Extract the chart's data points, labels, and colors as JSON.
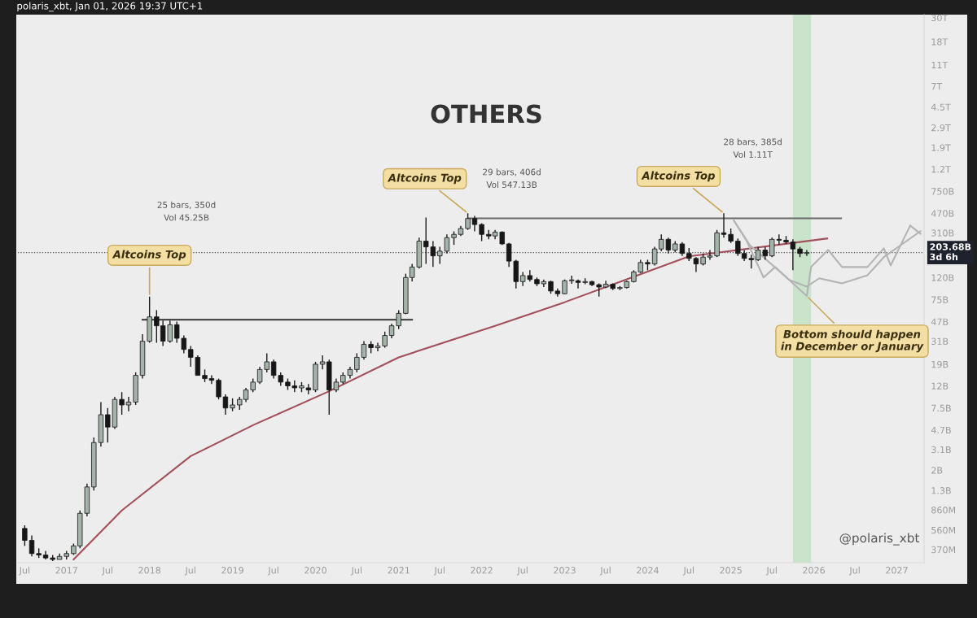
{
  "chart_data": {
    "type": "candlestick",
    "title": "OTHERS",
    "x": [
      "2016-07",
      "2016-08",
      "2016-09",
      "2016-10",
      "2016-11",
      "2016-12",
      "2017-01",
      "2017-02",
      "2017-03",
      "2017-04",
      "2017-05",
      "2017-06",
      "2017-07",
      "2017-08",
      "2017-09",
      "2017-10",
      "2017-11",
      "2017-12",
      "2018-01",
      "2018-02",
      "2018-03",
      "2018-04",
      "2018-05",
      "2018-06",
      "2018-07",
      "2018-08",
      "2018-09",
      "2018-10",
      "2018-11",
      "2018-12",
      "2019-01",
      "2019-02",
      "2019-03",
      "2019-04",
      "2019-05",
      "2019-06",
      "2019-07",
      "2019-08",
      "2019-09",
      "2019-10",
      "2019-11",
      "2019-12",
      "2020-01",
      "2020-02",
      "2020-03",
      "2020-04",
      "2020-05",
      "2020-06",
      "2020-07",
      "2020-08",
      "2020-09",
      "2020-10",
      "2020-11",
      "2020-12",
      "2021-01",
      "2021-02",
      "2021-03",
      "2021-04",
      "2021-05",
      "2021-06",
      "2021-07",
      "2021-08",
      "2021-09",
      "2021-10",
      "2021-11",
      "2021-12",
      "2022-01",
      "2022-02",
      "2022-03",
      "2022-04",
      "2022-05",
      "2022-06",
      "2022-07",
      "2022-08",
      "2022-09",
      "2022-10",
      "2022-11",
      "2022-12",
      "2023-01",
      "2023-02",
      "2023-03",
      "2023-04",
      "2023-05",
      "2023-06",
      "2023-07",
      "2023-08",
      "2023-09",
      "2023-10",
      "2023-11",
      "2023-12",
      "2024-01",
      "2024-02",
      "2024-03",
      "2024-04",
      "2024-05",
      "2024-06",
      "2024-07",
      "2024-08",
      "2024-09",
      "2024-10",
      "2024-11",
      "2024-12",
      "2025-01",
      "2025-02",
      "2025-03",
      "2025-04",
      "2025-05",
      "2025-06",
      "2025-07",
      "2025-08",
      "2025-09",
      "2025-10",
      "2025-11",
      "2025-12"
    ],
    "ohlc": [
      [
        580000000.0,
        620000000.0,
        400000000.0,
        450000000.0
      ],
      [
        450000000.0,
        500000000.0,
        320000000.0,
        340000000.0
      ],
      [
        340000000.0,
        380000000.0,
        310000000.0,
        330000000.0
      ],
      [
        330000000.0,
        360000000.0,
        300000000.0,
        310000000.0
      ],
      [
        310000000.0,
        330000000.0,
        290000000.0,
        300000000.0
      ],
      [
        300000000.0,
        340000000.0,
        300000000.0,
        320000000.0
      ],
      [
        320000000.0,
        360000000.0,
        300000000.0,
        340000000.0
      ],
      [
        340000000.0,
        420000000.0,
        330000000.0,
        400000000.0
      ],
      [
        400000000.0,
        850000000.0,
        380000000.0,
        800000000.0
      ],
      [
        800000000.0,
        1500000000.0,
        750000000.0,
        1400000000.0
      ],
      [
        1400000000.0,
        4000000000.0,
        1300000000.0,
        3600000000.0
      ],
      [
        3600000000.0,
        8500000000.0,
        3300000000.0,
        6500000000.0
      ],
      [
        6500000000.0,
        7500000000.0,
        3600000000.0,
        5000000000.0
      ],
      [
        5000000000.0,
        9500000000.0,
        4800000000.0,
        9000000000.0
      ],
      [
        9000000000.0,
        10500000000.0,
        6500000000.0,
        8000000000.0
      ],
      [
        8000000000.0,
        9500000000.0,
        7000000000.0,
        8500000000.0
      ],
      [
        8500000000.0,
        16000000000.0,
        8000000000.0,
        15000000000.0
      ],
      [
        15000000000.0,
        36000000000.0,
        14000000000.0,
        31000000000.0
      ],
      [
        31000000000.0,
        80000000000.0,
        30000000000.0,
        52000000000.0
      ],
      [
        52000000000.0,
        60000000000.0,
        30000000000.0,
        43000000000.0
      ],
      [
        43000000000.0,
        48000000000.0,
        28000000000.0,
        31000000000.0
      ],
      [
        31000000000.0,
        48000000000.0,
        30000000000.0,
        44000000000.0
      ],
      [
        44000000000.0,
        47000000000.0,
        30000000000.0,
        33000000000.0
      ],
      [
        33000000000.0,
        35000000000.0,
        24000000000.0,
        26000000000.0
      ],
      [
        26000000000.0,
        28000000000.0,
        18000000000.0,
        22000000000.0
      ],
      [
        22000000000.0,
        23000000000.0,
        15000000000.0,
        15000000000.0
      ],
      [
        15000000000.0,
        17000000000.0,
        13000000000.0,
        14000000000.0
      ],
      [
        14000000000.0,
        15000000000.0,
        12500000000.0,
        13500000000.0
      ],
      [
        13500000000.0,
        14000000000.0,
        9000000000.0,
        9500000000.0
      ],
      [
        9500000000.0,
        10000000000.0,
        6500000000.0,
        7500000000.0
      ],
      [
        7500000000.0,
        9200000000.0,
        7000000000.0,
        8000000000.0
      ],
      [
        8000000000.0,
        9500000000.0,
        7200000000.0,
        9000000000.0
      ],
      [
        9000000000.0,
        11500000000.0,
        8500000000.0,
        11000000000.0
      ],
      [
        11000000000.0,
        14000000000.0,
        10500000000.0,
        13000000000.0
      ],
      [
        13000000000.0,
        18000000000.0,
        12500000000.0,
        17000000000.0
      ],
      [
        17000000000.0,
        24000000000.0,
        16000000000.0,
        20000000000.0
      ],
      [
        20000000000.0,
        21000000000.0,
        14000000000.0,
        15000000000.0
      ],
      [
        15000000000.0,
        16000000000.0,
        12000000000.0,
        13000000000.0
      ],
      [
        13000000000.0,
        14000000000.0,
        11000000000.0,
        12000000000.0
      ],
      [
        12000000000.0,
        13500000000.0,
        10500000000.0,
        11500000000.0
      ],
      [
        11500000000.0,
        13000000000.0,
        10500000000.0,
        12000000000.0
      ],
      [
        11500000000.0,
        12500000000.0,
        10000000000.0,
        11000000000.0
      ],
      [
        11000000000.0,
        20000000000.0,
        10500000000.0,
        19000000000.0
      ],
      [
        19000000000.0,
        23000000000.0,
        17000000000.0,
        20000000000.0
      ],
      [
        20000000000.0,
        21000000000.0,
        6500000000.0,
        11000000000.0
      ],
      [
        11000000000.0,
        14000000000.0,
        10500000000.0,
        13000000000.0
      ],
      [
        13000000000.0,
        16000000000.0,
        12500000000.0,
        15000000000.0
      ],
      [
        15000000000.0,
        18000000000.0,
        14000000000.0,
        17000000000.0
      ],
      [
        17000000000.0,
        24000000000.0,
        16000000000.0,
        22000000000.0
      ],
      [
        22000000000.0,
        31000000000.0,
        21000000000.0,
        29000000000.0
      ],
      [
        29000000000.0,
        31000000000.0,
        24000000000.0,
        27000000000.0
      ],
      [
        27000000000.0,
        30000000000.0,
        25000000000.0,
        28000000000.0
      ],
      [
        28000000000.0,
        38000000000.0,
        27000000000.0,
        35000000000.0
      ],
      [
        35000000000.0,
        45000000000.0,
        33000000000.0,
        43000000000.0
      ],
      [
        43000000000.0,
        60000000000.0,
        40000000000.0,
        56000000000.0
      ],
      [
        56000000000.0,
        130000000000.0,
        55000000000.0,
        120000000000.0
      ],
      [
        120000000000.0,
        160000000000.0,
        110000000000.0,
        150000000000.0
      ],
      [
        150000000000.0,
        280000000000.0,
        145000000000.0,
        260000000000.0
      ],
      [
        260000000000.0,
        430000000000.0,
        160000000000.0,
        230000000000.0
      ],
      [
        230000000000.0,
        260000000000.0,
        150000000000.0,
        190000000000.0
      ],
      [
        190000000000.0,
        230000000000.0,
        160000000000.0,
        210000000000.0
      ],
      [
        210000000000.0,
        300000000000.0,
        200000000000.0,
        280000000000.0
      ],
      [
        280000000000.0,
        320000000000.0,
        240000000000.0,
        300000000000.0
      ],
      [
        300000000000.0,
        360000000000.0,
        290000000000.0,
        340000000000.0
      ],
      [
        340000000000.0,
        470000000000.0,
        330000000000.0,
        420000000000.0
      ],
      [
        420000000000.0,
        445000000000.0,
        320000000000.0,
        370000000000.0
      ],
      [
        370000000000.0,
        380000000000.0,
        260000000000.0,
        300000000000.0
      ],
      [
        300000000000.0,
        330000000000.0,
        270000000000.0,
        290000000000.0
      ],
      [
        290000000000.0,
        330000000000.0,
        270000000000.0,
        315000000000.0
      ],
      [
        315000000000.0,
        320000000000.0,
        240000000000.0,
        245000000000.0
      ],
      [
        245000000000.0,
        250000000000.0,
        150000000000.0,
        170000000000.0
      ],
      [
        170000000000.0,
        175000000000.0,
        95000000000.0,
        110000000000.0
      ],
      [
        110000000000.0,
        135000000000.0,
        100000000000.0,
        125000000000.0
      ],
      [
        125000000000.0,
        140000000000.0,
        110000000000.0,
        115000000000.0
      ],
      [
        115000000000.0,
        120000000000.0,
        100000000000.0,
        105000000000.0
      ],
      [
        105000000000.0,
        115000000000.0,
        98000000000.0,
        110000000000.0
      ],
      [
        110000000000.0,
        112000000000.0,
        85000000000.0,
        90000000000.0
      ],
      [
        90000000000.0,
        95000000000.0,
        80000000000.0,
        85000000000.0
      ],
      [
        85000000000.0,
        115000000000.0,
        84000000000.0,
        112000000000.0
      ],
      [
        112000000000.0,
        125000000000.0,
        105000000000.0,
        114000000000.0
      ],
      [
        112000000000.0,
        115000000000.0,
        95000000000.0,
        108000000000.0
      ],
      [
        108000000000.0,
        118000000000.0,
        104000000000.0,
        110000000000.0
      ],
      [
        110000000000.0,
        112000000000.0,
        100000000000.0,
        103000000000.0
      ],
      [
        103000000000.0,
        106000000000.0,
        80000000000.0,
        98000000000.0
      ],
      [
        98000000000.0,
        112000000000.0,
        96000000000.0,
        104000000000.0
      ],
      [
        104000000000.0,
        106000000000.0,
        92000000000.0,
        95000000000.0
      ],
      [
        95000000000.0,
        100000000000.0,
        92000000000.0,
        97000000000.0
      ],
      [
        97000000000.0,
        112000000000.0,
        95000000000.0,
        110000000000.0
      ],
      [
        110000000000.0,
        140000000000.0,
        108000000000.0,
        135000000000.0
      ],
      [
        135000000000.0,
        175000000000.0,
        132000000000.0,
        165000000000.0
      ],
      [
        165000000000.0,
        175000000000.0,
        140000000000.0,
        160000000000.0
      ],
      [
        160000000000.0,
        230000000000.0,
        155000000000.0,
        220000000000.0
      ],
      [
        220000000000.0,
        300000000000.0,
        210000000000.0,
        270000000000.0
      ],
      [
        270000000000.0,
        280000000000.0,
        200000000000.0,
        215000000000.0
      ],
      [
        215000000000.0,
        260000000000.0,
        205000000000.0,
        245000000000.0
      ],
      [
        245000000000.0,
        255000000000.0,
        190000000000.0,
        200000000000.0
      ],
      [
        200000000000.0,
        225000000000.0,
        170000000000.0,
        180000000000.0
      ],
      [
        180000000000.0,
        185000000000.0,
        135000000000.0,
        160000000000.0
      ],
      [
        160000000000.0,
        200000000000.0,
        155000000000.0,
        185000000000.0
      ],
      [
        185000000000.0,
        215000000000.0,
        175000000000.0,
        190000000000.0
      ],
      [
        190000000000.0,
        330000000000.0,
        185000000000.0,
        310000000000.0
      ],
      [
        310000000000.0,
        470000000000.0,
        280000000000.0,
        300000000000.0
      ],
      [
        300000000000.0,
        340000000000.0,
        250000000000.0,
        260000000000.0
      ],
      [
        260000000000.0,
        275000000000.0,
        190000000000.0,
        200000000000.0
      ],
      [
        200000000000.0,
        215000000000.0,
        170000000000.0,
        180000000000.0
      ],
      [
        180000000000.0,
        195000000000.0,
        145000000000.0,
        175000000000.0
      ],
      [
        175000000000.0,
        230000000000.0,
        170000000000.0,
        215000000000.0
      ],
      [
        215000000000.0,
        230000000000.0,
        175000000000.0,
        190000000000.0
      ],
      [
        190000000000.0,
        280000000000.0,
        185000000000.0,
        270000000000.0
      ],
      [
        270000000000.0,
        300000000000.0,
        240000000000.0,
        265000000000.0
      ],
      [
        265000000000.0,
        290000000000.0,
        245000000000.0,
        255000000000.0
      ],
      [
        255000000000.0,
        270000000000.0,
        140000000000.0,
        220000000000.0
      ],
      [
        220000000000.0,
        230000000000.0,
        185000000000.0,
        200000000000.0
      ],
      [
        200000000000.0,
        215000000000.0,
        190000000000.0,
        203680000000.0
      ]
    ],
    "colors": [
      "#161616",
      "#161616",
      "#161616",
      "#161616",
      "#161616",
      "#a5b4aa",
      "#a5b4aa",
      "#a5b4aa",
      "#a5b4aa",
      "#a5b4aa",
      "#a5b4aa",
      "#a5b4aa",
      "#161616",
      "#a5b4aa",
      "#161616",
      "#a5b4aa",
      "#a5b4aa",
      "#a5b4aa",
      "#a5b4aa",
      "#161616",
      "#161616",
      "#a5b4aa",
      "#161616",
      "#161616",
      "#161616",
      "#161616",
      "#161616",
      "#161616",
      "#161616",
      "#161616",
      "#a5b4aa",
      "#a5b4aa",
      "#a5b4aa",
      "#a5b4aa",
      "#a5b4aa",
      "#a5b4aa",
      "#161616",
      "#161616",
      "#161616",
      "#161616",
      "#a5b4aa",
      "#161616",
      "#a5b4aa",
      "#a5b4aa",
      "#161616",
      "#a5b4aa",
      "#a5b4aa",
      "#a5b4aa",
      "#a5b4aa",
      "#a5b4aa",
      "#161616",
      "#a5b4aa",
      "#a5b4aa",
      "#a5b4aa",
      "#a5b4aa",
      "#a5b4aa",
      "#a5b4aa",
      "#a5b4aa",
      "#161616",
      "#161616",
      "#a5b4aa",
      "#a5b4aa",
      "#a5b4aa",
      "#a5b4aa",
      "#a5b4aa",
      "#161616",
      "#161616",
      "#161616",
      "#a5b4aa",
      "#161616",
      "#161616",
      "#161616",
      "#a5b4aa",
      "#161616",
      "#161616",
      "#a5b4aa",
      "#161616",
      "#161616",
      "#a5b4aa",
      "#a5b4aa",
      "#161616",
      "#a5b4aa",
      "#161616",
      "#161616",
      "#a5b4aa",
      "#161616",
      "#a5b4aa",
      "#a5b4aa",
      "#a5b4aa",
      "#a5b4aa",
      "#161616",
      "#a5b4aa",
      "#a5b4aa",
      "#161616",
      "#a5b4aa",
      "#161616",
      "#161616",
      "#161616",
      "#a5b4aa",
      "#a5b4aa",
      "#a5b4aa",
      "#161616",
      "#161616",
      "#161616",
      "#161616",
      "#161616",
      "#a5b4aa",
      "#161616",
      "#a5b4aa",
      "#161616",
      "#161616",
      "#161616",
      "#161616",
      "#a5b4aa"
    ],
    "series": [
      {
        "type": "line",
        "color": "#a3505a",
        "x": [
          "2017-02",
          "2017-09",
          "2018-07",
          "2019-04",
          "2020-03",
          "2021-01",
          "2022-03",
          "2023-01",
          "2024-07",
          "2026-03"
        ],
        "values": [
          300000000.0,
          850000000.0,
          2700000000.0,
          5200000000.0,
          10700000000.0,
          22000000000.0,
          43000000000.0,
          71000000000.0,
          188000000000.0,
          275000000000.0
        ]
      },
      {
        "type": "line",
        "color": "#4a4a4a",
        "x": [
          "2017-12",
          "2021-03"
        ],
        "values": [
          49000000000.0,
          49000000000.0
        ]
      },
      {
        "type": "line",
        "color": "#6a6a6a",
        "x": [
          "2021-11",
          "2026-05"
        ],
        "values": [
          422000000000.0,
          422000000000.0
        ]
      },
      {
        "type": "line",
        "color": "#b4b4b4",
        "x": [
          "2025-01-15",
          "2025-03-10",
          "2025-05-25",
          "2025-07-15",
          "2025-10-01",
          "2025-12-01",
          "2025-12-20",
          "2026-03-05",
          "2026-05-05",
          "2026-08-25",
          "2026-11-05",
          "2026-12-05",
          "2027-03-01",
          "2027-04-15"
        ],
        "values": [
          401000000000.0,
          265000000000.0,
          120000000000.0,
          150000000000.0,
          106000000000.0,
          81000000000.0,
          150000000000.0,
          216000000000.0,
          150000000000.0,
          150000000000.0,
          223000000000.0,
          155000000000.0,
          362000000000.0,
          304000000000.0
        ]
      },
      {
        "type": "line",
        "color": "#b4b4b4",
        "x": [
          "2025-01-15",
          "2025-03-25",
          "2025-09-15",
          "2025-12-01",
          "2026-01-25",
          "2026-05-05",
          "2026-08-25",
          "2026-11-05",
          "2027-04-15"
        ],
        "values": [
          401000000000.0,
          239000000000.0,
          114000000000.0,
          99000000000.0,
          118000000000.0,
          106000000000.0,
          126000000000.0,
          185000000000.0,
          321000000000.0
        ]
      }
    ],
    "log": "y",
    "xlim": [
      "2016-06-01",
      "2027-05-01"
    ],
    "xticks": [
      {
        "value": "2016-07",
        "label": "Jul"
      },
      {
        "value": "2017",
        "label": "2017"
      },
      {
        "value": "2017-07",
        "label": "Jul"
      },
      {
        "value": "2018",
        "label": "2018"
      },
      {
        "value": "2018-07",
        "label": "Jul"
      },
      {
        "value": "2019",
        "label": "2019"
      },
      {
        "value": "2019-07",
        "label": "Jul"
      },
      {
        "value": "2020",
        "label": "2020"
      },
      {
        "value": "2020-07",
        "label": "Jul"
      },
      {
        "value": "2021",
        "label": "2021"
      },
      {
        "value": "2021-07",
        "label": "Jul"
      },
      {
        "value": "2022",
        "label": "2022"
      },
      {
        "value": "2022-07",
        "label": "Jul"
      },
      {
        "value": "2023",
        "label": "2023"
      },
      {
        "value": "2023-07",
        "label": "Jul"
      },
      {
        "value": "2024",
        "label": "2024"
      },
      {
        "value": "2024-07",
        "label": "Jul"
      },
      {
        "value": "2025",
        "label": "2025"
      },
      {
        "value": "2025-07",
        "label": "Jul"
      },
      {
        "value": "2026",
        "label": "2026"
      },
      {
        "value": "2026-07",
        "label": "Jul"
      },
      {
        "value": "2027",
        "label": "2027"
      }
    ],
    "ylim": [
      280000000.0,
      32000000000000.0
    ],
    "yticks": [
      {
        "value": 370000000.0,
        "label": "370M"
      },
      {
        "value": 560000000.0,
        "label": "560M"
      },
      {
        "value": 860000000.0,
        "label": "860M"
      },
      {
        "value": 1300000000.0,
        "label": "1.3B"
      },
      {
        "value": 2000000000.0,
        "label": "2B"
      },
      {
        "value": 3100000000.0,
        "label": "3.1B"
      },
      {
        "value": 4700000000.0,
        "label": "4.7B"
      },
      {
        "value": 7500000000.0,
        "label": "7.5B"
      },
      {
        "value": 12000000000.0,
        "label": "12B"
      },
      {
        "value": 19000000000.0,
        "label": "19B"
      },
      {
        "value": 31000000000.0,
        "label": "31B"
      },
      {
        "value": 47000000000.0,
        "label": "47B"
      },
      {
        "value": 75000000000.0,
        "label": "75B"
      },
      {
        "value": 120000000000.0,
        "label": "120B"
      },
      {
        "value": 310000000000.0,
        "label": "310B"
      },
      {
        "value": 470000000000.0,
        "label": "470B"
      },
      {
        "value": 750000000000.0,
        "label": "750B"
      },
      {
        "value": 1200000000000.0,
        "label": "1.2T"
      },
      {
        "value": 1900000000000.0,
        "label": "1.9T"
      },
      {
        "value": 2900000000000.0,
        "label": "2.9T"
      },
      {
        "value": 4500000000000.0,
        "label": "4.5T"
      },
      {
        "value": 7000000000000.0,
        "label": "7T"
      },
      {
        "value": 11000000000000.0,
        "label": "11T"
      },
      {
        "value": 18000000000000.0,
        "label": "18T"
      },
      {
        "value": 30000000000000.0,
        "label": "30T"
      }
    ],
    "ref_lines": [
      {
        "axis": "y",
        "value": 203680000000.0,
        "label": "203.68B\n3d 6h",
        "color": "#555555",
        "line_style": "dotted"
      }
    ],
    "bands": [
      {
        "axis": "x",
        "from": "2025-10-01",
        "to": "2025-12-20",
        "color": "#b9dfbb"
      }
    ],
    "annotations": [
      "polaris_xbt, Jan 01, 2026 19:37 UTC+1",
      {
        "text": "Altcoins Top",
        "x": "2018-01",
        "y": 80000000000.0
      },
      {
        "text": "Altcoins Top",
        "x": "2021-11",
        "y": 470000000000.0
      },
      {
        "text": "Altcoins Top",
        "x": "2024-12",
        "y": 470000000000.0
      },
      {
        "text": "Bottom should happen\nin December or January",
        "x": "2025-12",
        "y": 81000000000.0
      },
      "25 bars, 350d\nVol 45.25B",
      "29 bars, 406d\nVol 547.13B",
      "28 bars, 385d\nVol 1.11T",
      "@polaris_xbt"
    ]
  }
}
